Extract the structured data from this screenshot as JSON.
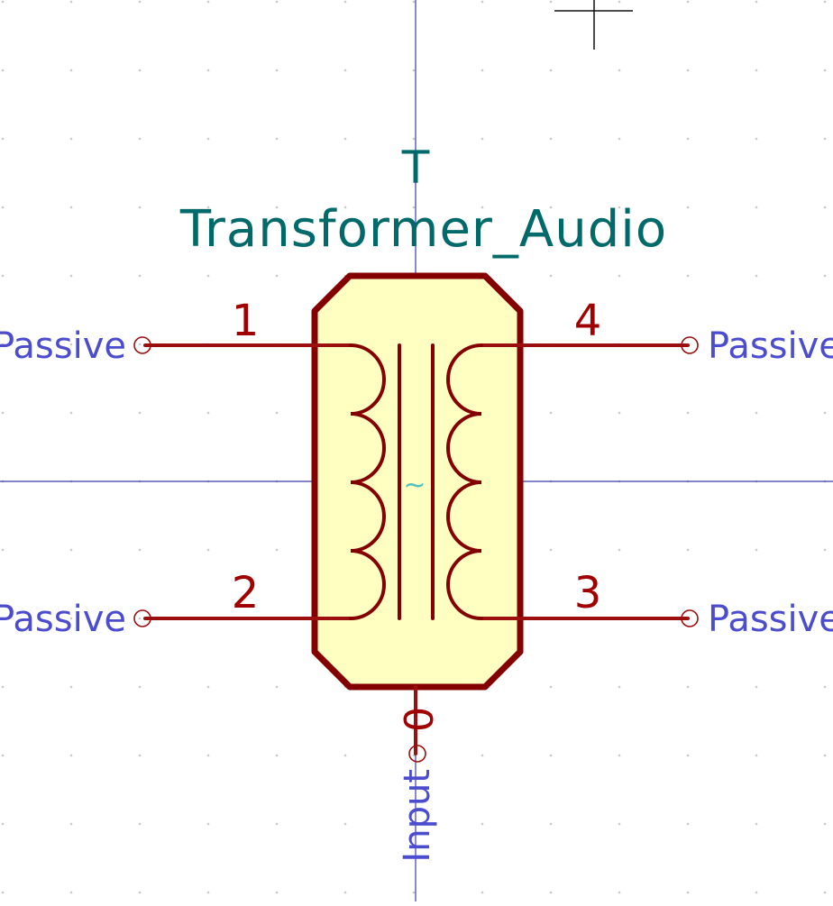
{
  "symbol": {
    "reference": "T",
    "value": "Transformer_Audio",
    "center_marker": "~",
    "unit_pin": {
      "number": "0",
      "type": "Input"
    },
    "pins": [
      {
        "id": "pin-1",
        "number": "1",
        "type": "Passive"
      },
      {
        "id": "pin-2",
        "number": "2",
        "type": "Passive"
      },
      {
        "id": "pin-3",
        "number": "3",
        "type": "Passive"
      },
      {
        "id": "pin-4",
        "number": "4",
        "type": "Passive"
      }
    ]
  },
  "colors": {
    "background": "#ffffff",
    "grid_dot": "#c9c9c9",
    "axis": "#3b3ba8",
    "body_fill": "#ffffc2",
    "body_stroke": "#840000",
    "pin_line": "#9b0f0f",
    "pin_number": "#a00000",
    "pin_type": "#4c4ccf",
    "field_text": "#006a6a",
    "center_marker": "#4fc3c3",
    "cursor": "#111111"
  }
}
